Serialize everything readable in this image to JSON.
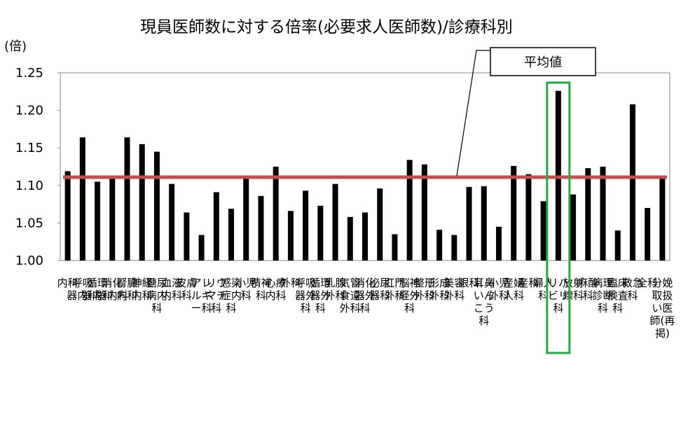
{
  "chart_data": {
    "type": "bar",
    "title": "現員医師数に対する倍率(必要求人医師数)/診療科別",
    "ylabel": "(倍)",
    "ylim": [
      1.0,
      1.25
    ],
    "yticks": [
      "1.00",
      "1.05",
      "1.10",
      "1.15",
      "1.20",
      "1.25"
    ],
    "grid": false,
    "categories": [
      "内科",
      "呼吸器内科",
      "循環器内科",
      "消化器内科",
      "腎臓内科",
      "神経内科",
      "糖尿病内科",
      "血液内科",
      "皮膚科",
      "アレルギー科",
      "リウマチ科",
      "感染症内科",
      "小児科",
      "精神科",
      "心療内科",
      "外科",
      "呼吸器外科",
      "循環器外科",
      "乳腺外科",
      "気管食道外科",
      "消化器外科",
      "泌尿器科",
      "肛門外科",
      "脳神経外科",
      "整形外科",
      "形成外科",
      "美容外科",
      "眼科",
      "耳鼻いんこう科",
      "小児外科",
      "産婦人科",
      "産科",
      "婦人科",
      "リハビリ科",
      "放射線科",
      "麻酔科",
      "病理診断科",
      "臨床検査科",
      "救急科",
      "全科",
      "分娩取扱い医師(再掲)"
    ],
    "category_label_lines": [
      [
        "内科"
      ],
      [
        "呼吸",
        "器内科"
      ],
      [
        "循環",
        "器内科"
      ],
      [
        "消化",
        "器内科"
      ],
      [
        "腎臓",
        "内科"
      ],
      [
        "神経",
        "内科"
      ],
      [
        "糖尿",
        "病内",
        "科"
      ],
      [
        "血液",
        "内科"
      ],
      [
        "皮膚",
        "科"
      ],
      [
        "アレ",
        "ルギ",
        "ー科"
      ],
      [
        "リウ",
        "マチ",
        "科"
      ],
      [
        "感染",
        "症内",
        "科"
      ],
      [
        "小児",
        "科"
      ],
      [
        "精神",
        "科"
      ],
      [
        "心療",
        "内科"
      ],
      [
        "外科"
      ],
      [
        "呼吸",
        "器外",
        "科"
      ],
      [
        "循環",
        "器外",
        "科"
      ],
      [
        "乳腺",
        "外科"
      ],
      [
        "気管",
        "食道",
        "外科"
      ],
      [
        "消化",
        "器外",
        "科"
      ],
      [
        "泌尿",
        "器科"
      ],
      [
        "肛門",
        "外科"
      ],
      [
        "脳神",
        "経外",
        "科"
      ],
      [
        "整形",
        "外科"
      ],
      [
        "形成",
        "外科"
      ],
      [
        "美容",
        "外科"
      ],
      [
        "眼科"
      ],
      [
        "耳鼻",
        "いん",
        "こう",
        "科"
      ],
      [
        "小児",
        "外科"
      ],
      [
        "産婦",
        "人科"
      ],
      [
        "産科"
      ],
      [
        "婦人",
        "科"
      ],
      [
        "リハ",
        "ビリ",
        "科"
      ],
      [
        "放射",
        "線科"
      ],
      [
        "麻酔",
        "科"
      ],
      [
        "病理",
        "診断",
        "科"
      ],
      [
        "臨床",
        "検査",
        "科"
      ],
      [
        "救急",
        "科"
      ],
      [
        "全科"
      ],
      [
        "分娩",
        "取扱",
        "い医",
        "師(再",
        "掲)"
      ]
    ],
    "values": [
      1.119,
      1.164,
      1.105,
      1.11,
      1.164,
      1.155,
      1.145,
      1.102,
      1.064,
      1.034,
      1.091,
      1.069,
      1.109,
      1.086,
      1.125,
      1.066,
      1.093,
      1.073,
      1.102,
      1.058,
      1.064,
      1.096,
      1.035,
      1.134,
      1.128,
      1.041,
      1.034,
      1.098,
      1.099,
      1.045,
      1.126,
      1.115,
      1.079,
      1.226,
      1.088,
      1.123,
      1.125,
      1.04,
      1.208,
      1.07,
      1.11
    ],
    "bar_color": "#000000",
    "average": {
      "label": "平均値",
      "value": 1.111,
      "color": "#c0504d"
    },
    "highlight": {
      "category": "リハビリ科",
      "color": "#22aa44"
    }
  }
}
